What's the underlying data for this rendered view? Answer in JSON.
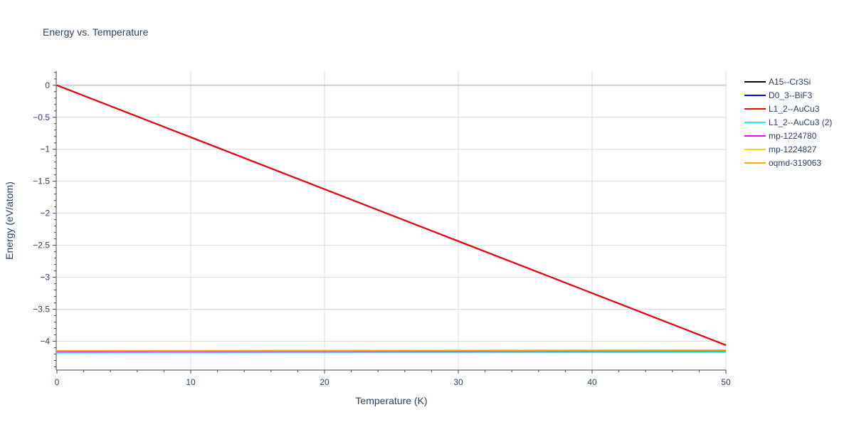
{
  "chart_data": {
    "type": "line",
    "title": "Energy vs. Temperature",
    "xlabel": "Temperature (K)",
    "ylabel": "Energy (eV/atom)",
    "xlim": [
      0,
      50
    ],
    "ylim": [
      -4.45,
      0.22
    ],
    "grid": true,
    "legend_position": "right",
    "x_ticks": [
      0,
      10,
      20,
      30,
      40,
      50
    ],
    "x_tick_labels": [
      "0",
      "10",
      "20",
      "30",
      "40",
      "50"
    ],
    "y_ticks": [
      0,
      -0.5,
      -1,
      -1.5,
      -2,
      -2.5,
      -3,
      -3.5,
      -4
    ],
    "y_tick_labels": [
      "0",
      "−0.5",
      "−1",
      "−1.5",
      "−2",
      "−2.5",
      "−3",
      "−3.5",
      "−4"
    ],
    "series": [
      {
        "name": "A15--Cr3Si",
        "color": "#000000",
        "x": [
          0,
          50
        ],
        "y": [
          0,
          -4.06
        ]
      },
      {
        "name": "D0_3--BiF3",
        "color": "#0000ff",
        "x": [
          0,
          50
        ],
        "y": [
          0,
          -4.06
        ]
      },
      {
        "name": "L1_2--AuCu3",
        "color": "#ff0000",
        "x": [
          0,
          50
        ],
        "y": [
          0,
          -4.06
        ]
      },
      {
        "name": "L1_2--AuCu3 (2)",
        "color": "#00ffff",
        "x": [
          0,
          50
        ],
        "y": [
          -4.18,
          -4.17
        ]
      },
      {
        "name": "mp-1224780",
        "color": "#ff00ff",
        "x": [
          0,
          50
        ],
        "y": [
          -4.16,
          -4.15
        ]
      },
      {
        "name": "mp-1224827",
        "color": "#ffd700",
        "x": [
          0,
          50
        ],
        "y": [
          -4.15,
          -4.14
        ]
      },
      {
        "name": "oqmd-319063",
        "color": "#ffa500",
        "x": [
          0,
          50
        ],
        "y": [
          -4.15,
          -4.14
        ]
      }
    ]
  }
}
